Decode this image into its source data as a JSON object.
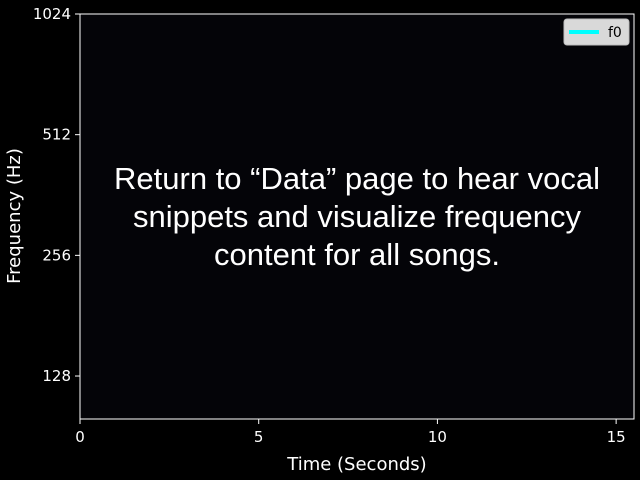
{
  "chart_data": {
    "type": "line",
    "xlabel": "Time (Seconds)",
    "ylabel": "Frequency (Hz)",
    "x_ticks": [
      0,
      5,
      10,
      15
    ],
    "y_ticks": [
      128,
      256,
      512,
      1024
    ],
    "xlim": [
      0,
      15.5
    ],
    "ylim": [
      100,
      1024
    ],
    "y_scale": "log2",
    "grid": false,
    "legend_position": "top-right",
    "series": [
      {
        "name": "f0",
        "color": "#00ffff",
        "values": []
      }
    ]
  },
  "message": "Return to “Data” page to hear vocal snippets and visualize frequency content for all songs.",
  "colors": {
    "background": "#000000",
    "plot_area": "#040408",
    "axes": "#ffffff",
    "legend_bg": "#d9d9d9",
    "f0_line": "#00ffff"
  }
}
